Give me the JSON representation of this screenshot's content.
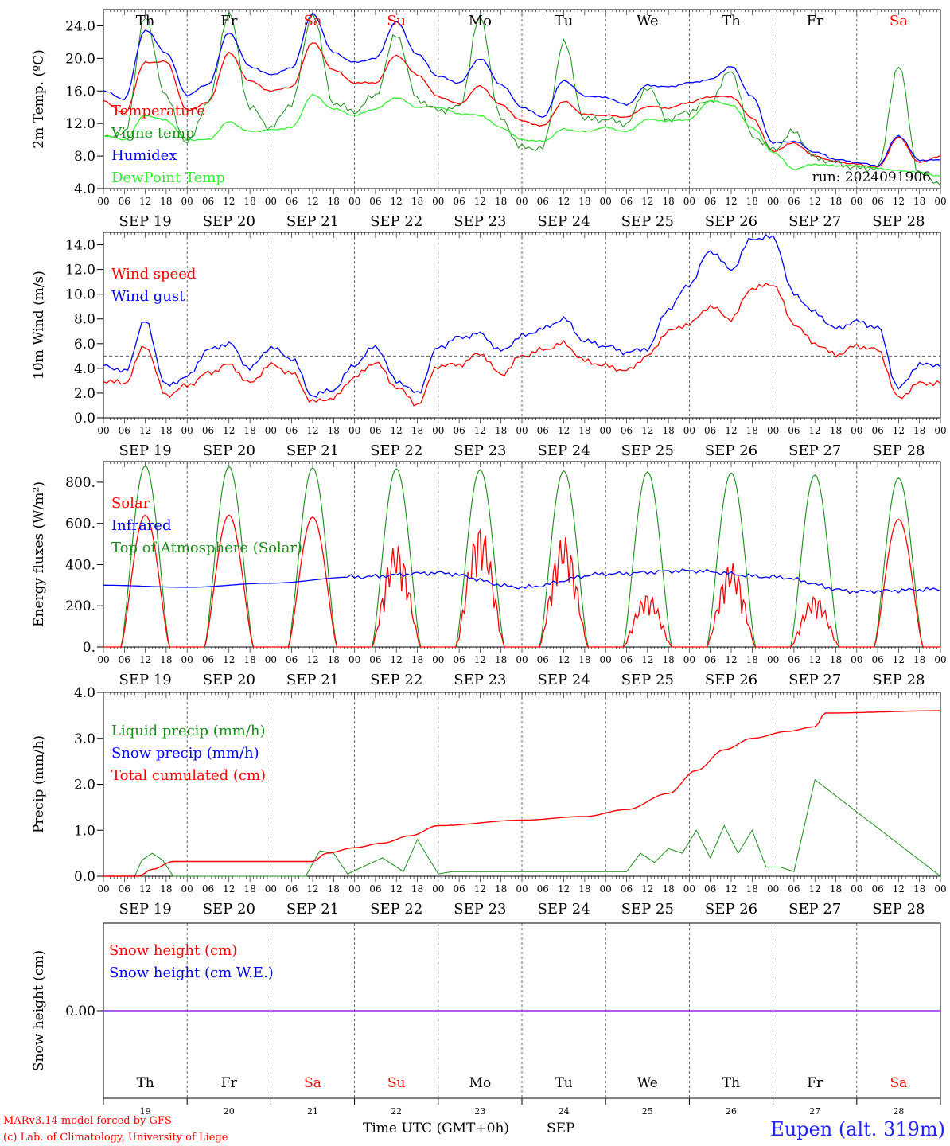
{
  "chart_data": [
    {
      "type": "line",
      "ylabel": "2m Temp. (ºC)",
      "ylim": [
        4.0,
        26.0
      ],
      "yticks": [
        "4.0",
        "8.0",
        "12.0",
        "16.0",
        "20.0",
        "24.0"
      ],
      "annotation": "run: 2024091906",
      "x": [
        0,
        6,
        12,
        18,
        24,
        30,
        36,
        42,
        48,
        54,
        60,
        66,
        72,
        78,
        84,
        90,
        96,
        102,
        108,
        114,
        120,
        126,
        132,
        138,
        144,
        150,
        156,
        162,
        168,
        174,
        180,
        186,
        192,
        198,
        204,
        210,
        216,
        222,
        228,
        234,
        240
      ],
      "series": [
        {
          "name": "Temperature",
          "color": "#ff0000",
          "values": [
            14.8,
            13.2,
            19.5,
            19.6,
            13.6,
            14.6,
            20.7,
            17.2,
            16.0,
            16.5,
            22.0,
            18.6,
            17.0,
            17.0,
            20.4,
            18.0,
            15.3,
            14.4,
            16.6,
            14.3,
            12.3,
            11.7,
            14.7,
            13.1,
            13.0,
            12.8,
            14.1,
            13.9,
            14.6,
            15.3,
            15.3,
            12.7,
            8.6,
            9.6,
            8.0,
            7.3,
            7.0,
            6.6,
            10.3,
            7.2,
            8.0
          ]
        },
        {
          "name": "Vigne temp",
          "color": "#1a8c1a",
          "values": [
            10.5,
            10.7,
            25.0,
            15.2,
            9.5,
            14.5,
            25.5,
            14.0,
            11.5,
            14.5,
            25.5,
            14.5,
            13.5,
            15.5,
            23.0,
            15.0,
            13.6,
            14.0,
            25.0,
            12.5,
            9.0,
            9.0,
            22.0,
            12.5,
            12.5,
            12.0,
            16.5,
            12.5,
            13.5,
            14.8,
            18.5,
            10.5,
            8.8,
            11.0,
            7.8,
            7.2,
            6.5,
            6.5,
            19.0,
            5.8,
            4.7
          ]
        },
        {
          "name": "Humidex",
          "color": "#0000ff",
          "values": [
            16.0,
            15.0,
            23.5,
            20.7,
            15.5,
            16.8,
            23.2,
            19.0,
            18.0,
            18.8,
            25.5,
            20.7,
            19.5,
            20.0,
            24.5,
            20.5,
            17.8,
            17.0,
            20.0,
            16.8,
            14.0,
            12.8,
            17.3,
            15.4,
            15.2,
            14.3,
            16.7,
            16.5,
            17.0,
            17.4,
            19.0,
            15.3,
            9.6,
            9.8,
            8.5,
            7.6,
            7.2,
            6.8,
            10.5,
            7.5,
            7.5
          ]
        },
        {
          "name": "DewPoint Temp",
          "color": "#33ee33",
          "values": [
            10.5,
            10.0,
            13.0,
            12.4,
            10.0,
            10.0,
            12.2,
            11.0,
            11.2,
            11.5,
            15.5,
            13.8,
            13.0,
            13.8,
            15.2,
            14.0,
            14.0,
            13.2,
            13.0,
            11.5,
            10.0,
            9.8,
            11.3,
            11.0,
            11.5,
            11.0,
            12.5,
            12.3,
            12.5,
            14.8,
            14.3,
            11.5,
            8.5,
            6.4,
            7.0,
            6.8,
            6.8,
            6.5,
            6.2,
            6.0,
            5.5
          ]
        }
      ]
    },
    {
      "type": "line",
      "ylabel": "10m Wind (m/s)",
      "ylim": [
        0,
        15.0
      ],
      "yticks": [
        "0.0",
        "2.0",
        "4.0",
        "6.0",
        "8.0",
        "10.0",
        "12.0",
        "14.0"
      ],
      "reference_line": 5.0,
      "x": [
        0,
        6,
        12,
        18,
        24,
        30,
        36,
        42,
        48,
        54,
        60,
        66,
        72,
        78,
        84,
        90,
        96,
        102,
        108,
        114,
        120,
        126,
        132,
        138,
        144,
        150,
        156,
        162,
        168,
        174,
        180,
        186,
        192,
        198,
        204,
        210,
        216,
        222,
        228,
        234,
        240
      ],
      "series": [
        {
          "name": "Wind speed",
          "color": "#ff0000",
          "values": [
            3.0,
            2.8,
            5.8,
            1.8,
            2.6,
            3.6,
            4.3,
            2.8,
            4.3,
            3.6,
            1.3,
            1.6,
            3.3,
            4.5,
            2.5,
            1.1,
            4.2,
            4.3,
            5.2,
            3.5,
            5.0,
            5.5,
            6.0,
            4.6,
            4.2,
            3.8,
            5.0,
            7.0,
            7.6,
            9.0,
            8.0,
            10.5,
            10.8,
            7.6,
            6.0,
            5.1,
            5.8,
            5.5,
            1.6,
            2.8,
            2.8
          ]
        },
        {
          "name": "Wind gust",
          "color": "#0000ff",
          "values": [
            4.3,
            3.7,
            7.8,
            2.6,
            3.3,
            5.5,
            6.0,
            4.0,
            5.7,
            4.8,
            1.8,
            2.3,
            4.3,
            5.8,
            3.0,
            2.0,
            5.7,
            6.5,
            6.8,
            5.4,
            6.6,
            7.2,
            8.0,
            6.2,
            5.8,
            5.3,
            5.6,
            8.8,
            10.8,
            13.5,
            12.0,
            14.5,
            14.6,
            10.0,
            8.5,
            7.2,
            7.8,
            7.3,
            2.4,
            4.3,
            4.3
          ]
        }
      ]
    },
    {
      "type": "line",
      "ylabel": "Energy fluxes (W/m²)",
      "ylim": [
        0,
        900
      ],
      "yticks": [
        "0.",
        "200.",
        "400.",
        "600.",
        "800."
      ],
      "series": [
        {
          "name": "Solar",
          "color": "#ff0000",
          "peaks": [
            640,
            640,
            630,
            500,
            590,
            540,
            260,
            410,
            250,
            620
          ]
        },
        {
          "name": "Infrared",
          "color": "#0000ff",
          "x": [
            0,
            24,
            48,
            72,
            96,
            120,
            144,
            168,
            192,
            216,
            240
          ],
          "values": [
            300,
            290,
            310,
            340,
            360,
            290,
            355,
            370,
            340,
            270,
            280
          ]
        },
        {
          "name": "Top of Atmosphere (Solar)",
          "color": "#1a8c1a",
          "peaks": [
            880,
            875,
            870,
            865,
            860,
            855,
            850,
            845,
            835,
            820
          ]
        }
      ]
    },
    {
      "type": "line",
      "ylabel": "Precip (mm/h)",
      "ylim": [
        0,
        4.0
      ],
      "yticks": [
        "0.0",
        "1.0",
        "2.0",
        "3.0",
        "4.0"
      ],
      "series": [
        {
          "name": "Liquid precip (mm/h)",
          "color": "#1a8c1a",
          "x": [
            0,
            9,
            11,
            14,
            17,
            20,
            58,
            62,
            66,
            70,
            80,
            86,
            90,
            96,
            100,
            118,
            150,
            154,
            158,
            162,
            166,
            170,
            174,
            178,
            182,
            186,
            190,
            194,
            198,
            204,
            240
          ],
          "values": [
            0,
            0,
            0.35,
            0.5,
            0.35,
            0,
            0,
            0.55,
            0.5,
            0.05,
            0.4,
            0.1,
            0.8,
            0.05,
            0.1,
            0.1,
            0.1,
            0.5,
            0.3,
            0.6,
            0.5,
            1.0,
            0.4,
            1.1,
            0.5,
            1.0,
            0.2,
            0.2,
            0.1,
            2.1,
            0
          ]
        },
        {
          "name": "Snow precip (mm/h)",
          "color": "#0000ff",
          "values": []
        },
        {
          "name": "Total cumulated (cm)",
          "color": "#ff0000",
          "x": [
            0,
            10,
            14,
            20,
            60,
            64,
            72,
            80,
            88,
            96,
            120,
            138,
            150,
            162,
            170,
            178,
            186,
            196,
            204,
            207,
            240
          ],
          "values": [
            0,
            0,
            0.15,
            0.32,
            0.32,
            0.5,
            0.62,
            0.72,
            0.88,
            1.1,
            1.22,
            1.3,
            1.45,
            1.8,
            2.3,
            2.75,
            3.0,
            3.15,
            3.25,
            3.55,
            3.6
          ]
        }
      ]
    },
    {
      "type": "line",
      "ylabel": "Snow height (cm)",
      "yticks": [
        "0.00"
      ],
      "series": [
        {
          "name": "Snow height (cm)",
          "color": "#ff0000",
          "values": [
            0,
            0
          ]
        },
        {
          "name": "Snow height (cm W.E.)",
          "color": "#0000ff",
          "values": [
            0,
            0
          ]
        }
      ]
    }
  ],
  "axis": {
    "hour_labels": [
      "00",
      "06",
      "12",
      "18"
    ],
    "dates": [
      "SEP 19",
      "SEP 20",
      "SEP 21",
      "SEP 22",
      "SEP 23",
      "SEP 24",
      "SEP 25",
      "SEP 26",
      "SEP 27",
      "SEP 28"
    ],
    "day_names": [
      "Th",
      "Fr",
      "Sa",
      "Su",
      "Mo",
      "Tu",
      "We",
      "Th",
      "Fr",
      "Sa"
    ],
    "weekend_color": "#ff0000",
    "day_numbers": [
      "19",
      "20",
      "21",
      "22",
      "23",
      "24",
      "25",
      "26",
      "27",
      "28"
    ],
    "xlabel": "Time UTC (GMT+0h)",
    "month": "SEP"
  },
  "footer": {
    "credit_line1": "MARv3.14 model forced by GFS",
    "credit_line2": "(c) Lab. of Climatology, University of Liege",
    "location": "Eupen (alt. 319m)"
  }
}
